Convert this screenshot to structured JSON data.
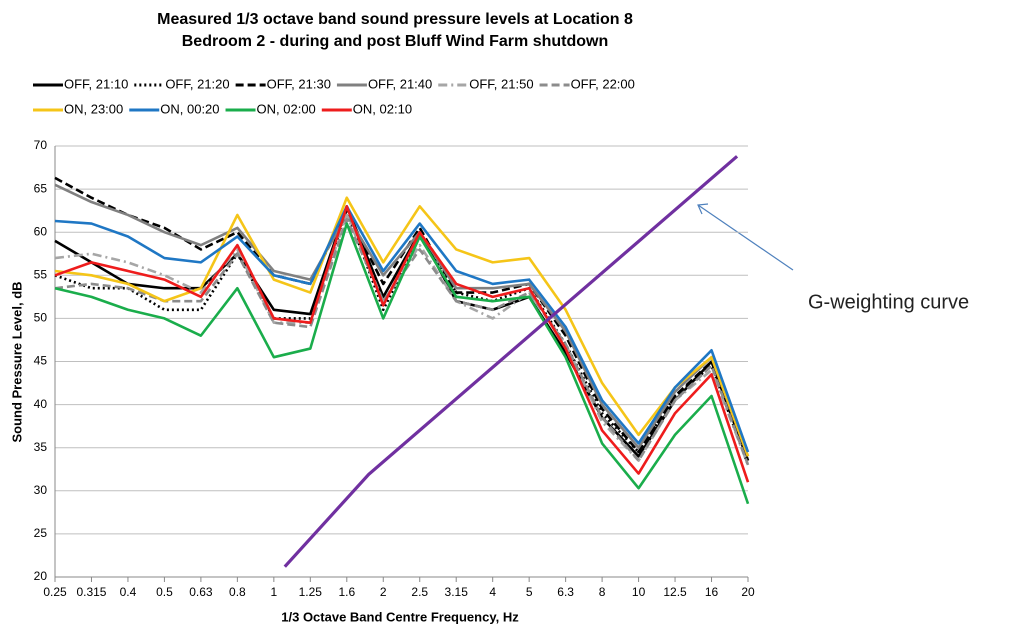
{
  "chart_data": {
    "type": "line",
    "title": [
      "Measured 1/3 octave band sound pressure levels at Location 8",
      "Bedroom 2 - during and post Bluff Wind Farm shutdown"
    ],
    "x_label": "1/3 Octave Band Centre Frequency, Hz",
    "y_label": "Sound Pressure Level, dB",
    "categories": [
      "0.25",
      "0.315",
      "0.4",
      "0.5",
      "0.63",
      "0.8",
      "1",
      "1.25",
      "1.6",
      "2",
      "2.5",
      "3.15",
      "4",
      "5",
      "6.3",
      "8",
      "10",
      "12.5",
      "16",
      "20"
    ],
    "ylim": [
      20,
      70
    ],
    "yticks": [
      20,
      25,
      30,
      35,
      40,
      45,
      50,
      55,
      60,
      65,
      70
    ],
    "grid": true,
    "series": [
      {
        "name": "OFF, 21:10",
        "color": "#000000",
        "style": "solid",
        "values": [
          59,
          56.5,
          54,
          53.5,
          53.5,
          57.5,
          51,
          50.5,
          63,
          52.5,
          60,
          52,
          51,
          52.5,
          46,
          38.5,
          34,
          40.5,
          45,
          33.5
        ]
      },
      {
        "name": "OFF, 21:20",
        "color": "#000000",
        "style": "dotted",
        "values": [
          55,
          53.5,
          53.5,
          51,
          51,
          57.5,
          50,
          50,
          62.5,
          51,
          59.5,
          53,
          52,
          53.5,
          47,
          39,
          34.5,
          41,
          44.5,
          33
        ]
      },
      {
        "name": "OFF, 21:30",
        "color": "#000000",
        "style": "dashed",
        "values": [
          66.3,
          64,
          62,
          60.5,
          58,
          60,
          55,
          54,
          62.5,
          54,
          60.5,
          53,
          53,
          54,
          48,
          39.5,
          34.5,
          41,
          45,
          33.5
        ]
      },
      {
        "name": "OFF, 21:40",
        "color": "#808080",
        "style": "solid",
        "values": [
          65.5,
          63.5,
          62,
          60,
          58.5,
          60.5,
          55.5,
          54.5,
          62,
          55,
          60,
          53.5,
          53.5,
          54,
          48.5,
          40,
          35,
          41.5,
          45.5,
          34
        ]
      },
      {
        "name": "OFF, 21:50",
        "color": "#a6a6a6",
        "style": "dashdot",
        "values": [
          57,
          57.5,
          56.5,
          55,
          53,
          58,
          49.5,
          49.5,
          62,
          52,
          58.5,
          52,
          50,
          53,
          47,
          38,
          33.5,
          40.5,
          44,
          33
        ]
      },
      {
        "name": "OFF, 22:00",
        "color": "#8c8c8c",
        "style": "dashed",
        "values": [
          53.5,
          54,
          53.5,
          52,
          52,
          57.5,
          49.5,
          49,
          61.5,
          52,
          58,
          52,
          51,
          53,
          47,
          38.5,
          33.5,
          40.5,
          44.5,
          33
        ]
      },
      {
        "name": "ON, 23:00",
        "color": "#f5c518",
        "style": "solid",
        "values": [
          55.5,
          55,
          54,
          52,
          53.5,
          62,
          54.5,
          53,
          64,
          56.5,
          63,
          58,
          56.5,
          57,
          51,
          42.5,
          36.5,
          42,
          45.5,
          34
        ]
      },
      {
        "name": "ON, 00:20",
        "color": "#1f77c4",
        "style": "solid",
        "values": [
          61.3,
          61,
          59.5,
          57,
          56.5,
          59.5,
          55,
          54,
          63,
          55.5,
          61,
          55.5,
          54,
          54.5,
          49,
          40.5,
          35.5,
          42,
          46.3,
          34.5
        ]
      },
      {
        "name": "ON, 02:00",
        "color": "#1aad4b",
        "style": "solid",
        "values": [
          53.5,
          52.5,
          51,
          50,
          48,
          53.5,
          45.5,
          46.5,
          61,
          50,
          59.5,
          52.5,
          52,
          52.5,
          45.5,
          35.5,
          30.3,
          36.5,
          41,
          28.5
        ]
      },
      {
        "name": "ON, 02:10",
        "color": "#ee1c1c",
        "style": "solid",
        "values": [
          55,
          56.5,
          55.5,
          54.5,
          52.5,
          58.5,
          50,
          49.5,
          63,
          51.5,
          60,
          54,
          52.5,
          53.5,
          46.5,
          37,
          32,
          39,
          43.5,
          31
        ]
      }
    ],
    "curve": {
      "label": "G-weighting curve",
      "color": "#7030a0",
      "x": [
        6.3,
        8.6,
        18.7
      ],
      "values": [
        21.2,
        31.9,
        68.8
      ]
    }
  }
}
